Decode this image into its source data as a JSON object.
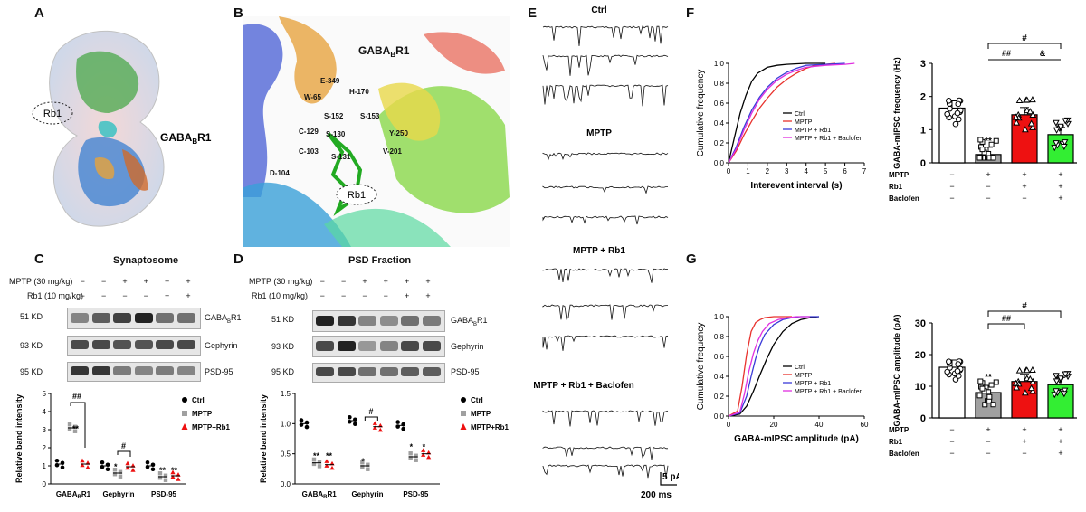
{
  "panels": {
    "A": "A",
    "B": "B",
    "C": "C",
    "D": "D",
    "E": "E",
    "F": "F",
    "G": "G"
  },
  "panelA": {
    "ligand": "Rb1",
    "receptor": "GABA",
    "receptor_sub": "B",
    "receptor_tail": "R1"
  },
  "panelB": {
    "receptor": "GABA",
    "receptor_sub": "B",
    "receptor_tail": "R1",
    "ligand": "Rb1",
    "residues": [
      "E-349",
      "H-170",
      "W-65",
      "S-152",
      "S-153",
      "C-129",
      "S-130",
      "Y-250",
      "C-103",
      "V-201",
      "S-131",
      "D-104"
    ]
  },
  "panelC": {
    "title": "Synaptosome",
    "cond1": "MPTP (30 mg/kg)",
    "cond2": "Rb1  (10 mg/kg)",
    "mptp_row": [
      "−",
      "−",
      "+",
      "+",
      "+",
      "+"
    ],
    "rb1_row": [
      "−",
      "−",
      "−",
      "−",
      "+",
      "+"
    ],
    "sizes": [
      "51 KD",
      "93 KD",
      "95 KD"
    ],
    "proteins": [
      "GABA",
      "Gephyrin",
      "PSD-95"
    ],
    "ylabel": "Relative band intensity",
    "legend": [
      "Ctrl",
      "MPTP",
      "MPTP+Rb1"
    ],
    "xcats": [
      "GABA",
      "Gephyrin",
      "PSD-95"
    ],
    "yticks": [
      "0",
      "1",
      "2",
      "3",
      "4",
      "5"
    ],
    "sig": {
      "s1": "**",
      "s2": "##",
      "s3": "*",
      "s4": "#",
      "s5": "**",
      "s6": "**"
    }
  },
  "panelD": {
    "title": "PSD Fraction",
    "cond1": "MPTP (30 mg/kg)",
    "cond2": "Rb1  (10 mg/kg)",
    "mptp_row": [
      "−",
      "−",
      "+",
      "+",
      "+",
      "+"
    ],
    "rb1_row": [
      "−",
      "−",
      "−",
      "−",
      "+",
      "+"
    ],
    "sizes": [
      "51 KD",
      "93 KD",
      "95 KD"
    ],
    "proteins": [
      "GABA",
      "Gephyrin",
      "PSD-95"
    ],
    "ylabel": "Relative band intensity",
    "legend": [
      "Ctrl",
      "MPTP",
      "MPTP+Rb1"
    ],
    "xcats": [
      "GABA",
      "Gephyrin",
      "PSD-95"
    ],
    "yticks": [
      "0.0",
      "0.5",
      "1.0",
      "1.5"
    ],
    "sig": {
      "s1": "**",
      "s2": "**",
      "s3": "*",
      "s4": "#",
      "s5": "*",
      "s6": "*"
    }
  },
  "panelE": {
    "groups": [
      "Ctrl",
      "MPTP",
      "MPTP + Rb1",
      "MPTP + Rb1 + Baclofen"
    ],
    "scale_y": "5 pA",
    "scale_x": "200 ms"
  },
  "colors": {
    "ctrl": "#000000",
    "mptp": "#e8322d",
    "rb1": "#3a3ad8",
    "bac": "#e030e0",
    "gray": "#a0a0a0",
    "red": "#ee1111",
    "green": "#33ee33"
  },
  "chart_data": [
    {
      "type": "line",
      "name": "F-cumulative",
      "xlabel": "Interevent interval (s)",
      "ylabel": "Cumulative frequency",
      "xlim": [
        0,
        7
      ],
      "ylim": [
        0,
        1.0
      ],
      "xticks": [
        "0",
        "1",
        "2",
        "3",
        "4",
        "5",
        "6",
        "7"
      ],
      "yticks": [
        "0.0",
        "0.2",
        "0.4",
        "0.6",
        "0.8",
        "1.0"
      ],
      "legend": [
        "Ctrl",
        "MPTP",
        "MPTP + Rb1",
        "MPTP + Rb1 + Baclofen"
      ],
      "series": [
        {
          "name": "Ctrl",
          "x": [
            0,
            0.3,
            0.6,
            0.9,
            1.2,
            1.5,
            2.0,
            2.5,
            3.0,
            4.0,
            5.0
          ],
          "y": [
            0,
            0.25,
            0.5,
            0.68,
            0.82,
            0.9,
            0.96,
            0.98,
            0.99,
            1.0,
            1.0
          ]
        },
        {
          "name": "MPTP",
          "x": [
            0,
            0.4,
            0.8,
            1.2,
            1.6,
            2.0,
            2.5,
            3.0,
            3.5,
            4.0,
            4.5,
            5.0,
            5.5
          ],
          "y": [
            0,
            0.12,
            0.28,
            0.42,
            0.55,
            0.65,
            0.76,
            0.84,
            0.9,
            0.95,
            0.98,
            0.99,
            1.0
          ]
        },
        {
          "name": "MPTP + Rb1",
          "x": [
            0,
            0.4,
            0.8,
            1.2,
            1.6,
            2.0,
            2.5,
            3.0,
            3.5,
            4.0,
            5.0,
            6.0
          ],
          "y": [
            0,
            0.16,
            0.36,
            0.53,
            0.66,
            0.76,
            0.85,
            0.91,
            0.95,
            0.98,
            0.99,
            1.0
          ]
        },
        {
          "name": "MPTP + Rb1 + Baclofen",
          "x": [
            0,
            0.4,
            0.8,
            1.2,
            1.6,
            2.0,
            2.5,
            3.0,
            3.5,
            4.0,
            5.0,
            6.0,
            6.5
          ],
          "y": [
            0,
            0.14,
            0.33,
            0.5,
            0.64,
            0.74,
            0.83,
            0.89,
            0.93,
            0.96,
            0.98,
            0.99,
            1.0
          ]
        }
      ]
    },
    {
      "type": "bar",
      "name": "F-bars",
      "ylabel": "GABA-mIPSC frequency (Hz)",
      "ylim": [
        0,
        3
      ],
      "yticks": [
        "0",
        "1",
        "2",
        "3"
      ],
      "values": [
        1.65,
        0.25,
        1.45,
        0.85
      ],
      "row_labels": [
        "MPTP",
        "Rb1",
        "Baclofen"
      ],
      "rows": [
        [
          "−",
          "+",
          "+",
          "+"
        ],
        [
          "−",
          "−",
          "+",
          "+"
        ],
        [
          "−",
          "−",
          "−",
          "+"
        ]
      ],
      "sig": {
        "s1": "**",
        "s2": "#",
        "s3": "##",
        "s4": "&"
      }
    },
    {
      "type": "line",
      "name": "G-cumulative",
      "xlabel": "GABA-mIPSC amplitude (pA)",
      "ylabel": "Cumulative frequency",
      "xlim": [
        0,
        60
      ],
      "ylim": [
        0,
        1.0
      ],
      "xticks": [
        "0",
        "20",
        "40",
        "60"
      ],
      "yticks": [
        "0.0",
        "0.2",
        "0.4",
        "0.6",
        "0.8",
        "1.0"
      ],
      "legend": [
        "Ctrl",
        "MPTP",
        "MPTP + Rb1",
        "MPTP + Rb1 + Baclofen"
      ],
      "series": [
        {
          "name": "Ctrl",
          "x": [
            0,
            5,
            8,
            11,
            14,
            17,
            20,
            24,
            28,
            32,
            36,
            40
          ],
          "y": [
            0,
            0.02,
            0.1,
            0.25,
            0.42,
            0.58,
            0.72,
            0.85,
            0.93,
            0.97,
            0.99,
            1.0
          ]
        },
        {
          "name": "MPTP",
          "x": [
            0,
            4,
            6,
            8,
            10,
            12,
            14,
            16,
            20,
            24,
            28
          ],
          "y": [
            0,
            0.05,
            0.3,
            0.62,
            0.85,
            0.94,
            0.97,
            0.99,
            1.0,
            1.0,
            1.0
          ]
        },
        {
          "name": "MPTP + Rb1",
          "x": [
            0,
            5,
            8,
            10,
            12,
            14,
            16,
            20,
            24,
            28,
            32,
            40
          ],
          "y": [
            0,
            0.03,
            0.2,
            0.4,
            0.58,
            0.72,
            0.82,
            0.92,
            0.97,
            0.99,
            1.0,
            1.0
          ]
        },
        {
          "name": "MPTP + Rb1 + Baclofen",
          "x": [
            0,
            5,
            7,
            9,
            11,
            13,
            15,
            18,
            22,
            26,
            30,
            36
          ],
          "y": [
            0,
            0.04,
            0.22,
            0.45,
            0.63,
            0.76,
            0.85,
            0.93,
            0.97,
            0.99,
            1.0,
            1.0
          ]
        }
      ]
    },
    {
      "type": "bar",
      "name": "G-bars",
      "ylabel": "GABA-mIPSC amplitude (pA)",
      "ylim": [
        0,
        30
      ],
      "yticks": [
        "0",
        "10",
        "20",
        "30"
      ],
      "values": [
        16,
        8,
        11.5,
        10.5
      ],
      "row_labels": [
        "MPTP",
        "Rb1",
        "Baclofen"
      ],
      "rows": [
        [
          "−",
          "+",
          "+",
          "+"
        ],
        [
          "−",
          "−",
          "+",
          "+"
        ],
        [
          "−",
          "−",
          "−",
          "+"
        ]
      ],
      "sig": {
        "s1": "**",
        "s2": "#",
        "s3": "##"
      }
    },
    {
      "type": "scatter",
      "name": "C-dots",
      "ylim": [
        0,
        5
      ],
      "categories": [
        "GABA",
        "Gephyrin",
        "PSD-95"
      ],
      "series": [
        {
          "name": "Ctrl",
          "values": [
            1.1,
            1.0,
            1.0
          ]
        },
        {
          "name": "MPTP",
          "values": [
            3.1,
            0.6,
            0.4
          ]
        },
        {
          "name": "MPTP+Rb1",
          "values": [
            1.1,
            0.95,
            0.45
          ]
        }
      ]
    },
    {
      "type": "scatter",
      "name": "D-dots",
      "ylim": [
        0,
        1.5
      ],
      "categories": [
        "GABA",
        "Gephyrin",
        "PSD-95"
      ],
      "series": [
        {
          "name": "Ctrl",
          "values": [
            1.0,
            1.05,
            0.97
          ]
        },
        {
          "name": "MPTP",
          "values": [
            0.35,
            0.3,
            0.45
          ]
        },
        {
          "name": "MPTP+Rb1",
          "values": [
            0.32,
            0.95,
            0.5
          ]
        }
      ]
    }
  ]
}
